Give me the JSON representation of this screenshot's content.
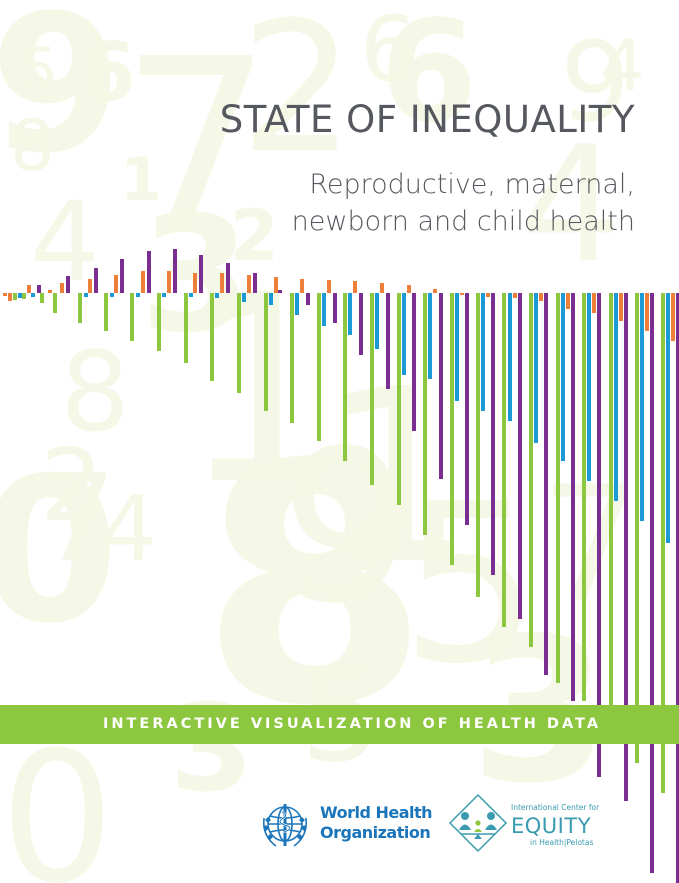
{
  "cover": {
    "title": "STATE OF INEQUALITY",
    "subtitle_line1": "Reproductive, maternal,",
    "subtitle_line2": "newborn and child health",
    "banner": "INTERACTIVE VISUALIZATION OF HEALTH DATA"
  },
  "logos": {
    "who_line1": "World Health",
    "who_line2": "Organization",
    "equity_top": "International Center for",
    "equity_name": "EQUITY",
    "equity_bottom": "in Health|Pelotas"
  },
  "colors": {
    "green": "#8dc63f",
    "purple": "#7b2e91",
    "orange": "#ee7f3b",
    "blue": "#1c9ad6",
    "title_gray": "#55585e",
    "background_numbers": "#f4f8e4",
    "who_blue": "#1a75bb",
    "equity_teal": "#3a9bb0"
  },
  "background_digits": [
    "9",
    "7",
    "5",
    "6",
    "8",
    "4",
    "3",
    "2",
    "1",
    "0",
    "9",
    "7",
    "6",
    "2",
    "4",
    "3",
    "5",
    "1",
    "8",
    "0",
    "5",
    "3",
    "4",
    "9",
    "1",
    "8",
    "6",
    "2",
    "7",
    "4"
  ]
}
